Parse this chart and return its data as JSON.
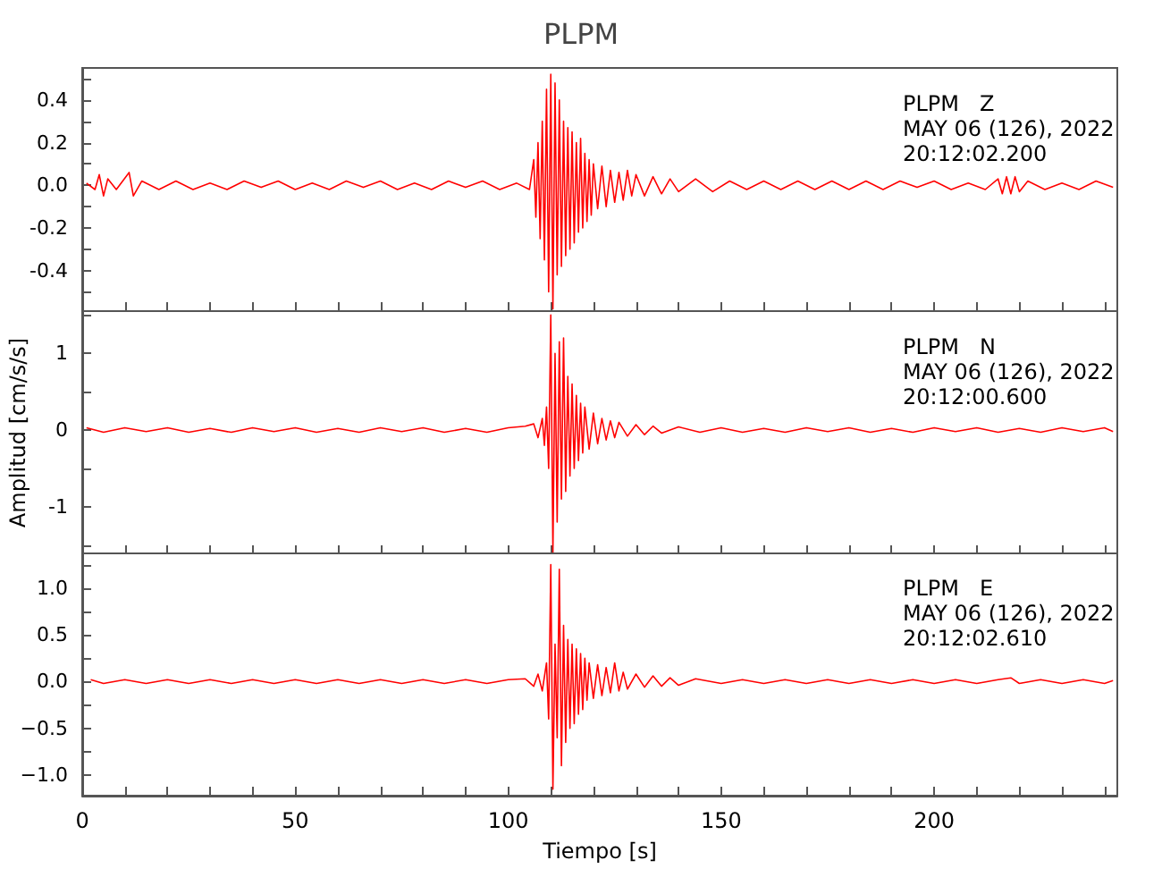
{
  "chart_data": [
    {
      "type": "line",
      "title": "PLPM",
      "annotations": [
        "PLPM   Z",
        "MAY 06 (126), 2022",
        "20:12:02.200"
      ],
      "color": "#ff0000",
      "tick_labels": "y",
      "xlim": [
        0,
        243
      ],
      "xticks": [
        0,
        {
          "value": 10,
          "label": null
        },
        {
          "value": 20,
          "label": null
        },
        {
          "value": 30,
          "label": null
        },
        {
          "value": 40,
          "label": null
        },
        50,
        {
          "value": 60,
          "label": null
        },
        {
          "value": 70,
          "label": null
        },
        {
          "value": 80,
          "label": null
        },
        {
          "value": 90,
          "label": null
        },
        100,
        {
          "value": 110,
          "label": null
        },
        {
          "value": 120,
          "label": null
        },
        {
          "value": 130,
          "label": null
        },
        {
          "value": 140,
          "label": null
        },
        150,
        {
          "value": 160,
          "label": null
        },
        {
          "value": 170,
          "label": null
        },
        {
          "value": 180,
          "label": null
        },
        {
          "value": 190,
          "label": null
        },
        200,
        {
          "value": 210,
          "label": null
        },
        {
          "value": 220,
          "label": null
        },
        {
          "value": 230,
          "label": null
        },
        {
          "value": 240,
          "label": null
        }
      ],
      "ylim": [
        -0.59,
        0.55
      ],
      "yticks": [
        {
          "value": -0.5,
          "label": null
        },
        -0.4,
        {
          "value": -0.3,
          "label": null
        },
        -0.2,
        {
          "value": -0.1,
          "label": null
        },
        {
          "value": 0,
          "label": "0.0"
        },
        {
          "value": 0.1,
          "label": null
        },
        0.2,
        {
          "value": 0.3,
          "label": null
        },
        0.4,
        {
          "value": 0.5,
          "label": null
        }
      ],
      "x": [
        1,
        3,
        4,
        5,
        6,
        8,
        11,
        12,
        14,
        18,
        22,
        26,
        30,
        34,
        38,
        42,
        46,
        50,
        54,
        58,
        62,
        66,
        70,
        74,
        78,
        82,
        86,
        90,
        94,
        98,
        102,
        105,
        106,
        106.5,
        107,
        107.5,
        108,
        108.5,
        109,
        109.5,
        110,
        110.5,
        111,
        111.5,
        112,
        112.5,
        113,
        113.5,
        114,
        114.5,
        115,
        115.5,
        116,
        116.5,
        117,
        117.5,
        118,
        118.5,
        119,
        119.5,
        120,
        121,
        122,
        123,
        124,
        125,
        126,
        127,
        128,
        129,
        130,
        132,
        134,
        136,
        138,
        140,
        144,
        148,
        152,
        156,
        160,
        164,
        168,
        172,
        176,
        180,
        184,
        188,
        192,
        196,
        200,
        204,
        208,
        212,
        215,
        216,
        217,
        218,
        219,
        220,
        222,
        226,
        230,
        234,
        238,
        242
      ],
      "values": [
        0.01,
        -0.02,
        0.05,
        -0.05,
        0.03,
        -0.02,
        0.06,
        -0.05,
        0.02,
        -0.02,
        0.02,
        -0.02,
        0.01,
        -0.02,
        0.02,
        -0.01,
        0.02,
        -0.02,
        0.01,
        -0.02,
        0.02,
        -0.01,
        0.02,
        -0.02,
        0.01,
        -0.02,
        0.02,
        -0.01,
        0.02,
        -0.02,
        0.01,
        -0.02,
        0.12,
        -0.15,
        0.2,
        -0.25,
        0.3,
        -0.35,
        0.45,
        -0.5,
        0.52,
        -0.58,
        0.48,
        -0.42,
        0.4,
        -0.38,
        0.3,
        -0.33,
        0.27,
        -0.3,
        0.25,
        -0.27,
        0.2,
        -0.22,
        0.22,
        -0.2,
        0.15,
        -0.17,
        0.12,
        -0.14,
        0.1,
        -0.11,
        0.09,
        -0.1,
        0.07,
        -0.08,
        0.06,
        -0.07,
        0.07,
        -0.05,
        0.05,
        -0.05,
        0.04,
        -0.04,
        0.03,
        -0.03,
        0.03,
        -0.03,
        0.02,
        -0.02,
        0.02,
        -0.02,
        0.02,
        -0.02,
        0.02,
        -0.02,
        0.02,
        -0.02,
        0.02,
        -0.01,
        0.02,
        -0.02,
        0.01,
        -0.02,
        0.03,
        -0.04,
        0.04,
        -0.04,
        0.04,
        -0.03,
        0.02,
        -0.02,
        0.01,
        -0.02,
        0.02,
        -0.01
      ]
    },
    {
      "type": "line",
      "ylabel": "Amplitud [cm/s/s]",
      "annotations": [
        "PLPM   N",
        "MAY 06 (126), 2022",
        "20:12:00.600"
      ],
      "color": "#ff0000",
      "tick_labels": "y",
      "xlim": [
        0,
        243
      ],
      "xticks": [
        0,
        {
          "value": 10,
          "label": null
        },
        {
          "value": 20,
          "label": null
        },
        {
          "value": 30,
          "label": null
        },
        {
          "value": 40,
          "label": null
        },
        50,
        {
          "value": 60,
          "label": null
        },
        {
          "value": 70,
          "label": null
        },
        {
          "value": 80,
          "label": null
        },
        {
          "value": 90,
          "label": null
        },
        100,
        {
          "value": 110,
          "label": null
        },
        {
          "value": 120,
          "label": null
        },
        {
          "value": 130,
          "label": null
        },
        {
          "value": 140,
          "label": null
        },
        150,
        {
          "value": 160,
          "label": null
        },
        {
          "value": 170,
          "label": null
        },
        {
          "value": 180,
          "label": null
        },
        {
          "value": 190,
          "label": null
        },
        200,
        {
          "value": 210,
          "label": null
        },
        {
          "value": 220,
          "label": null
        },
        {
          "value": 230,
          "label": null
        },
        {
          "value": 240,
          "label": null
        }
      ],
      "ylim": [
        -1.62,
        1.55
      ],
      "yticks": [
        {
          "value": -1.5,
          "label": null
        },
        -1,
        {
          "value": -0.5,
          "label": null
        },
        0,
        {
          "value": 0.5,
          "label": null
        },
        1,
        {
          "value": 1.5,
          "label": null
        }
      ],
      "x": [
        1,
        5,
        10,
        15,
        20,
        25,
        30,
        35,
        40,
        45,
        50,
        55,
        60,
        65,
        70,
        75,
        80,
        85,
        90,
        95,
        100,
        104,
        106,
        107,
        108,
        108.5,
        109,
        109.5,
        110,
        110.5,
        111,
        111.5,
        112,
        112.5,
        113,
        113.5,
        114,
        114.5,
        115,
        115.5,
        116,
        116.5,
        117,
        117.5,
        118,
        119,
        120,
        121,
        122,
        123,
        124,
        125,
        126,
        128,
        130,
        132,
        134,
        136,
        140,
        145,
        150,
        155,
        160,
        165,
        170,
        175,
        180,
        185,
        190,
        195,
        200,
        205,
        210,
        215,
        220,
        225,
        230,
        235,
        240,
        242
      ],
      "values": [
        0.03,
        -0.03,
        0.03,
        -0.02,
        0.03,
        -0.03,
        0.02,
        -0.03,
        0.03,
        -0.02,
        0.03,
        -0.03,
        0.02,
        -0.03,
        0.03,
        -0.02,
        0.03,
        -0.03,
        0.02,
        -0.03,
        0.03,
        0.05,
        0.08,
        -0.1,
        0.15,
        -0.2,
        0.3,
        -0.5,
        1.5,
        -1.6,
        1.0,
        -1.2,
        1.15,
        -0.9,
        1.2,
        -0.8,
        0.7,
        -0.6,
        0.6,
        -0.5,
        0.45,
        -0.4,
        0.35,
        -0.3,
        0.3,
        -0.25,
        0.22,
        -0.18,
        0.15,
        -0.13,
        0.12,
        -0.1,
        0.1,
        -0.08,
        0.07,
        -0.06,
        0.05,
        -0.04,
        0.04,
        -0.03,
        0.03,
        -0.03,
        0.02,
        -0.03,
        0.03,
        -0.02,
        0.03,
        -0.03,
        0.02,
        -0.03,
        0.03,
        -0.02,
        0.03,
        -0.03,
        0.02,
        -0.03,
        0.03,
        -0.02,
        0.03,
        -0.02
      ]
    },
    {
      "type": "line",
      "xlabel": "Tiempo [s]",
      "annotations": [
        "PLPM   E",
        "MAY 06 (126), 2022",
        "20:12:02.610"
      ],
      "color": "#ff0000",
      "xlim": [
        0,
        243
      ],
      "xticks": [
        0,
        {
          "value": 10,
          "label": null
        },
        {
          "value": 20,
          "label": null
        },
        {
          "value": 30,
          "label": null
        },
        {
          "value": 40,
          "label": null
        },
        50,
        {
          "value": 60,
          "label": null
        },
        {
          "value": 70,
          "label": null
        },
        {
          "value": 80,
          "label": null
        },
        {
          "value": 90,
          "label": null
        },
        100,
        {
          "value": 110,
          "label": null
        },
        {
          "value": 120,
          "label": null
        },
        {
          "value": 130,
          "label": null
        },
        {
          "value": 140,
          "label": null
        },
        150,
        {
          "value": 160,
          "label": null
        },
        {
          "value": 170,
          "label": null
        },
        {
          "value": 180,
          "label": null
        },
        {
          "value": 190,
          "label": null
        },
        200,
        {
          "value": 210,
          "label": null
        },
        {
          "value": 220,
          "label": null
        },
        {
          "value": 230,
          "label": null
        },
        {
          "value": 240,
          "label": null
        }
      ],
      "ylim": [
        -1.22,
        1.38
      ],
      "yticks": [
        {
          "value": -1,
          "label": "−1.0"
        },
        {
          "value": -0.75,
          "label": null
        },
        {
          "value": -0.5,
          "label": "−0.5"
        },
        {
          "value": -0.25,
          "label": null
        },
        {
          "value": 0,
          "label": "0.0"
        },
        {
          "value": 0.25,
          "label": null
        },
        0.5,
        {
          "value": 0.75,
          "label": null
        },
        {
          "value": 1,
          "label": "1.0"
        },
        {
          "value": 1.25,
          "label": null
        }
      ],
      "x": [
        2,
        5,
        10,
        15,
        20,
        25,
        30,
        35,
        40,
        45,
        50,
        55,
        60,
        65,
        70,
        75,
        80,
        85,
        90,
        95,
        100,
        104,
        106,
        107,
        108,
        109,
        109.5,
        110,
        110.5,
        111,
        111.5,
        112,
        112.5,
        113,
        113.5,
        114,
        114.5,
        115,
        115.5,
        116,
        116.5,
        117,
        117.5,
        118,
        118.5,
        119,
        120,
        121,
        122,
        123,
        124,
        125,
        126,
        127,
        128,
        130,
        132,
        134,
        136,
        138,
        140,
        144,
        150,
        155,
        160,
        165,
        170,
        175,
        180,
        185,
        190,
        195,
        200,
        205,
        210,
        215,
        218,
        220,
        225,
        230,
        235,
        240,
        242
      ],
      "values": [
        0.02,
        -0.02,
        0.02,
        -0.02,
        0.02,
        -0.02,
        0.02,
        -0.02,
        0.02,
        -0.02,
        0.02,
        -0.02,
        0.02,
        -0.02,
        0.02,
        -0.02,
        0.02,
        -0.02,
        0.02,
        -0.02,
        0.02,
        0.03,
        -0.05,
        0.08,
        -0.1,
        0.2,
        -0.4,
        1.25,
        -1.15,
        0.4,
        -0.6,
        1.2,
        -0.9,
        0.6,
        -0.65,
        0.45,
        -0.5,
        0.4,
        -0.45,
        0.35,
        -0.35,
        0.3,
        -0.3,
        0.25,
        -0.2,
        0.2,
        -0.18,
        0.18,
        -0.15,
        0.15,
        -0.12,
        0.2,
        -0.1,
        0.1,
        -0.08,
        0.08,
        -0.06,
        0.06,
        -0.05,
        0.04,
        -0.04,
        0.03,
        -0.02,
        0.02,
        -0.02,
        0.02,
        -0.02,
        0.02,
        -0.02,
        0.02,
        -0.02,
        0.02,
        -0.02,
        0.02,
        -0.02,
        0.02,
        0.04,
        -0.02,
        0.02,
        -0.02,
        0.02,
        -0.02,
        0.01
      ]
    }
  ]
}
